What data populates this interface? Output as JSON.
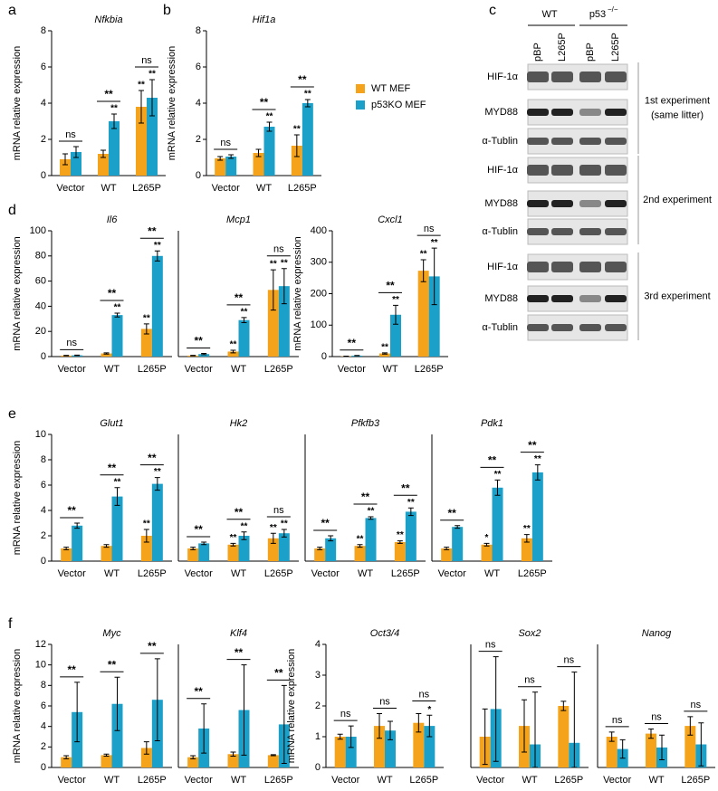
{
  "chart_data": [
    {
      "type": "bar",
      "panel": "a",
      "title": "Nfkbia",
      "ylabel": "mRNA relative expression",
      "categories": [
        "Vector",
        "WT",
        "L265P"
      ],
      "series": [
        {
          "color": "#f5a31a",
          "values": [
            0.9,
            1.2,
            3.8
          ],
          "errors": [
            0.3,
            0.2,
            0.9
          ],
          "stars": [
            null,
            null,
            "**"
          ]
        },
        {
          "color": "#1ba1c9",
          "values": [
            1.3,
            3.0,
            4.3
          ],
          "errors": [
            0.3,
            0.4,
            1.0
          ],
          "stars": [
            null,
            "**",
            "**"
          ]
        }
      ],
      "significance": [
        "ns",
        "**",
        "ns"
      ],
      "ylim": [
        0,
        8
      ],
      "yticks": [
        0,
        2,
        4,
        6,
        8
      ]
    },
    {
      "type": "bar",
      "panel": "b",
      "title": "Hif1a",
      "ylabel": "mRNA relative expression",
      "categories": [
        "Vector",
        "WT",
        "L265P"
      ],
      "series": [
        {
          "name": "WT MEF",
          "color": "#f5a31a",
          "values": [
            0.95,
            1.25,
            1.65
          ],
          "errors": [
            0.1,
            0.2,
            0.6
          ],
          "stars": [
            null,
            null,
            "**"
          ]
        },
        {
          "name": "p53KO MEF",
          "color": "#1ba1c9",
          "values": [
            1.05,
            2.7,
            4.0
          ],
          "errors": [
            0.1,
            0.25,
            0.2
          ],
          "stars": [
            null,
            "**",
            "**"
          ]
        }
      ],
      "significance": [
        "ns",
        "**",
        "**"
      ],
      "ylim": [
        0,
        8
      ],
      "yticks": [
        0,
        2,
        4,
        6,
        8
      ]
    },
    {
      "type": "bar",
      "panel": "d",
      "title": "Il6",
      "ylabel": "mRNA relative expression",
      "categories": [
        "Vector",
        "WT",
        "L265P"
      ],
      "series": [
        {
          "color": "#f5a31a",
          "values": [
            0.8,
            2.5,
            22
          ],
          "errors": [
            0.2,
            0.5,
            4
          ],
          "stars": [
            null,
            null,
            "**"
          ]
        },
        {
          "color": "#1ba1c9",
          "values": [
            1,
            33,
            80
          ],
          "errors": [
            0.2,
            1.5,
            4
          ],
          "stars": [
            null,
            "**",
            "**"
          ]
        }
      ],
      "significance": [
        "ns",
        "**",
        "**"
      ],
      "ylim": [
        0,
        100
      ],
      "yticks": [
        0,
        20,
        40,
        60,
        80,
        100
      ]
    },
    {
      "type": "bar",
      "title": "Mcp1",
      "categories": [
        "Vector",
        "WT",
        "L265P"
      ],
      "series": [
        {
          "color": "#f5a31a",
          "values": [
            0.8,
            4,
            53
          ],
          "errors": [
            0.2,
            1,
            16
          ],
          "stars": [
            null,
            "**",
            "**"
          ]
        },
        {
          "color": "#1ba1c9",
          "values": [
            2,
            29,
            56
          ],
          "errors": [
            0.5,
            2,
            14
          ],
          "stars": [
            null,
            "**",
            "**"
          ]
        }
      ],
      "significance": [
        "**",
        "**",
        "ns"
      ],
      "ylim": [
        0,
        100
      ]
    },
    {
      "type": "bar",
      "title": "Cxcl1",
      "ylabel": "mRNA relative expression",
      "categories": [
        "Vector",
        "WT",
        "L265P"
      ],
      "series": [
        {
          "color": "#f5a31a",
          "values": [
            1,
            10,
            273
          ],
          "errors": [
            0.3,
            2,
            35
          ],
          "stars": [
            null,
            "**",
            "**"
          ]
        },
        {
          "color": "#1ba1c9",
          "values": [
            3,
            133,
            255
          ],
          "errors": [
            0.5,
            30,
            90
          ],
          "stars": [
            null,
            "**",
            "**"
          ]
        }
      ],
      "significance": [
        "**",
        "**",
        "ns"
      ],
      "ylim": [
        0,
        400
      ],
      "yticks": [
        0,
        100,
        200,
        300,
        400
      ]
    },
    {
      "type": "bar",
      "panel": "e",
      "title": "Glut1",
      "ylabel": "mRNA relative expression",
      "categories": [
        "Vector",
        "WT",
        "L265P"
      ],
      "series": [
        {
          "color": "#f5a31a",
          "values": [
            1.0,
            1.2,
            2.0
          ],
          "errors": [
            0.1,
            0.1,
            0.5
          ],
          "stars": [
            null,
            null,
            "**"
          ]
        },
        {
          "color": "#1ba1c9",
          "values": [
            2.8,
            5.1,
            6.1
          ],
          "errors": [
            0.2,
            0.7,
            0.5
          ],
          "stars": [
            null,
            "**",
            "**"
          ]
        }
      ],
      "significance": [
        "**",
        "**",
        "**"
      ],
      "ylim": [
        0,
        10
      ],
      "yticks": [
        0,
        2,
        4,
        6,
        8,
        10
      ]
    },
    {
      "type": "bar",
      "title": "Hk2",
      "categories": [
        "Vector",
        "WT",
        "L265P"
      ],
      "series": [
        {
          "color": "#f5a31a",
          "values": [
            1.0,
            1.3,
            1.8
          ],
          "errors": [
            0.1,
            0.1,
            0.4
          ],
          "stars": [
            null,
            "**",
            "**"
          ]
        },
        {
          "color": "#1ba1c9",
          "values": [
            1.4,
            2.0,
            2.2
          ],
          "errors": [
            0.1,
            0.3,
            0.3
          ],
          "stars": [
            null,
            "**",
            "**"
          ]
        }
      ],
      "significance": [
        "**",
        "**",
        "ns"
      ],
      "ylim": [
        0,
        10
      ]
    },
    {
      "type": "bar",
      "title": "Pfkfb3",
      "categories": [
        "Vector",
        "WT",
        "L265P"
      ],
      "series": [
        {
          "color": "#f5a31a",
          "values": [
            1.0,
            1.2,
            1.5
          ],
          "errors": [
            0.1,
            0.1,
            0.1
          ],
          "stars": [
            null,
            "**",
            "**"
          ]
        },
        {
          "color": "#1ba1c9",
          "values": [
            1.8,
            3.4,
            3.9
          ],
          "errors": [
            0.2,
            0.1,
            0.3
          ],
          "stars": [
            null,
            "**",
            "**"
          ]
        }
      ],
      "significance": [
        "**",
        "**",
        "**"
      ],
      "ylim": [
        0,
        10
      ]
    },
    {
      "type": "bar",
      "title": "Pdk1",
      "categories": [
        "Vector",
        "WT",
        "L265P"
      ],
      "series": [
        {
          "color": "#f5a31a",
          "values": [
            1.0,
            1.3,
            1.8
          ],
          "errors": [
            0.1,
            0.1,
            0.3
          ],
          "stars": [
            null,
            "*",
            "**"
          ]
        },
        {
          "color": "#1ba1c9",
          "values": [
            2.7,
            5.8,
            7.0
          ],
          "errors": [
            0.1,
            0.6,
            0.6
          ],
          "stars": [
            null,
            "**",
            "**"
          ]
        }
      ],
      "significance": [
        "**",
        "**",
        "**"
      ],
      "ylim": [
        0,
        10
      ]
    },
    {
      "type": "bar",
      "panel": "f",
      "title": "Myc",
      "ylabel": "mRNA relative expression",
      "categories": [
        "Vector",
        "WT",
        "L265P"
      ],
      "series": [
        {
          "color": "#f5a31a",
          "values": [
            1.0,
            1.2,
            1.9
          ],
          "errors": [
            0.15,
            0.1,
            0.6
          ]
        },
        {
          "color": "#1ba1c9",
          "values": [
            5.4,
            6.2,
            6.6
          ],
          "errors": [
            2.9,
            2.6,
            4.0
          ]
        }
      ],
      "significance": [
        "**",
        "**",
        "**"
      ],
      "ylim": [
        0,
        12
      ],
      "yticks": [
        0,
        2,
        4,
        6,
        8,
        10,
        12
      ]
    },
    {
      "type": "bar",
      "title": "Klf4",
      "categories": [
        "Vector",
        "WT",
        "L265P"
      ],
      "series": [
        {
          "color": "#f5a31a",
          "values": [
            1.0,
            1.3,
            1.2
          ],
          "errors": [
            0.15,
            0.2,
            0.05
          ]
        },
        {
          "color": "#1ba1c9",
          "values": [
            3.8,
            5.6,
            4.2
          ],
          "errors": [
            2.4,
            4.4,
            3.8
          ]
        }
      ],
      "significance": [
        "**",
        "**",
        "**"
      ],
      "ylim": [
        0,
        12
      ]
    },
    {
      "type": "bar",
      "title": "Oct3/4",
      "ylabel": "mRNA relative expression",
      "categories": [
        "Vector",
        "WT",
        "L265P"
      ],
      "series": [
        {
          "color": "#f5a31a",
          "values": [
            1.0,
            1.35,
            1.45
          ],
          "errors": [
            0.08,
            0.4,
            0.3
          ]
        },
        {
          "color": "#1ba1c9",
          "values": [
            1.0,
            1.2,
            1.35
          ],
          "errors": [
            0.35,
            0.3,
            0.35
          ],
          "stars": [
            null,
            null,
            "*"
          ]
        }
      ],
      "significance": [
        "ns",
        "ns",
        "ns"
      ],
      "ylim": [
        0,
        4
      ],
      "yticks": [
        0,
        1,
        2,
        3,
        4
      ]
    },
    {
      "type": "bar",
      "title": "Sox2",
      "categories": [
        "Vector",
        "WT",
        "L265P"
      ],
      "series": [
        {
          "color": "#f5a31a",
          "values": [
            1.0,
            1.35,
            2.0
          ],
          "errors": [
            0.9,
            0.85,
            0.15
          ]
        },
        {
          "color": "#1ba1c9",
          "values": [
            1.9,
            0.75,
            0.8
          ],
          "errors": [
            1.7,
            1.7,
            2.3
          ]
        }
      ],
      "significance": [
        "ns",
        "ns",
        "ns"
      ],
      "ylim": [
        0,
        4
      ]
    },
    {
      "type": "bar",
      "title": "Nanog",
      "categories": [
        "Vector",
        "WT",
        "L265P"
      ],
      "series": [
        {
          "color": "#f5a31a",
          "values": [
            1.0,
            1.1,
            1.35
          ],
          "errors": [
            0.15,
            0.15,
            0.3
          ]
        },
        {
          "color": "#1ba1c9",
          "values": [
            0.6,
            0.65,
            0.75
          ],
          "errors": [
            0.3,
            0.4,
            0.7
          ]
        }
      ],
      "significance": [
        "ns",
        "ns",
        "ns"
      ],
      "ylim": [
        0,
        4
      ]
    }
  ],
  "blot": {
    "panel": "c",
    "groups": [
      {
        "label": "WT"
      },
      {
        "label": "p53",
        "superscript": "−/−"
      }
    ],
    "lanes": [
      "pBP",
      "L265P",
      "pBP",
      "L265P"
    ],
    "experiments": [
      {
        "label": "1st experiment",
        "note": "(same litter)",
        "rows": [
          "HIF-1α",
          "MYD88",
          "α-Tublin"
        ]
      },
      {
        "label": "2nd experiment",
        "rows": [
          "HIF-1α",
          "MYD88",
          "α-Tublin"
        ]
      },
      {
        "label": "3rd experiment",
        "rows": [
          "HIF-1α",
          "MYD88",
          "α-Tublin"
        ]
      }
    ]
  }
}
